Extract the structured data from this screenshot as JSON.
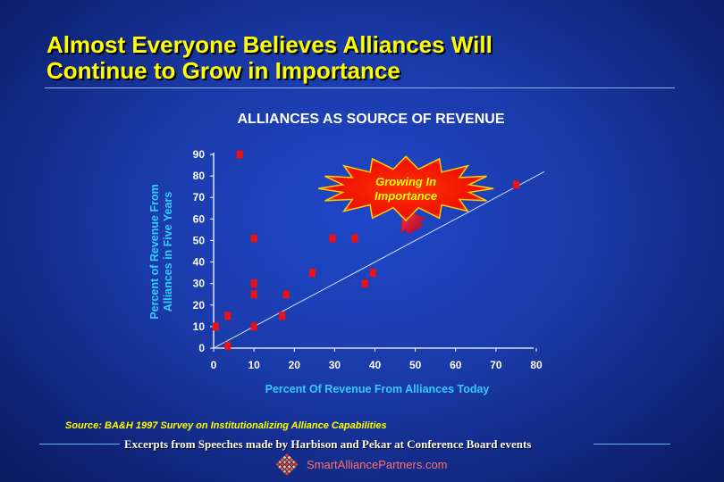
{
  "slide": {
    "title_line1": "Almost Everyone Believes Alliances Will",
    "title_line2": "Continue to Grow in Importance"
  },
  "chart_data": {
    "type": "scatter",
    "title": "ALLIANCES AS SOURCE OF REVENUE",
    "xlabel": "Percent Of Revenue From Alliances Today",
    "ylabel_line1": "Percent of Revenue From",
    "ylabel_line2": "Alliances in Five Years",
    "xlim": [
      0,
      80
    ],
    "ylim": [
      0,
      90
    ],
    "x_ticks": [
      0,
      10,
      20,
      30,
      40,
      50,
      60,
      70,
      80
    ],
    "y_ticks": [
      0,
      10,
      20,
      30,
      40,
      50,
      60,
      70,
      80,
      90
    ],
    "grid": false,
    "points": [
      {
        "x": 0.5,
        "y": 10
      },
      {
        "x": 3.5,
        "y": 15
      },
      {
        "x": 3.5,
        "y": 1
      },
      {
        "x": 6.5,
        "y": 90
      },
      {
        "x": 10,
        "y": 51
      },
      {
        "x": 10,
        "y": 30
      },
      {
        "x": 10,
        "y": 25
      },
      {
        "x": 10,
        "y": 10
      },
      {
        "x": 17,
        "y": 15
      },
      {
        "x": 18,
        "y": 25
      },
      {
        "x": 24.5,
        "y": 35
      },
      {
        "x": 29.5,
        "y": 51
      },
      {
        "x": 35,
        "y": 51
      },
      {
        "x": 37.5,
        "y": 30
      },
      {
        "x": 39.5,
        "y": 35
      },
      {
        "x": 75,
        "y": 76
      }
    ],
    "diagonal_line": {
      "from": [
        0,
        0
      ],
      "to": [
        82,
        82
      ]
    },
    "annotation": {
      "text_line1": "Growing In",
      "text_line2": "Importance",
      "anchor": [
        47,
        75
      ]
    },
    "arrow": {
      "from": [
        50,
        55
      ],
      "to": [
        47,
        65
      ]
    },
    "colors": {
      "marker": "#ee1111",
      "axis": "#ffffff",
      "tick_label": "#ffffff",
      "axis_label": "#33ccff",
      "title": "#ffffff",
      "diagonal": "#ccddff",
      "burst_fill": "#ff1100",
      "burst_edge": "#ffcc00",
      "burst_text": "#ffff00",
      "arrow": "#d01030"
    }
  },
  "footer": {
    "source": "Source:  BA&H 1997 Survey on Institutionalizing Alliance Capabilities",
    "excerpt": "Excerpts from Speeches made by Harbison and Pekar at Conference Board events",
    "site": "SmartAlliancePartners.com",
    "logo_icon": "diamond-grid-icon"
  }
}
